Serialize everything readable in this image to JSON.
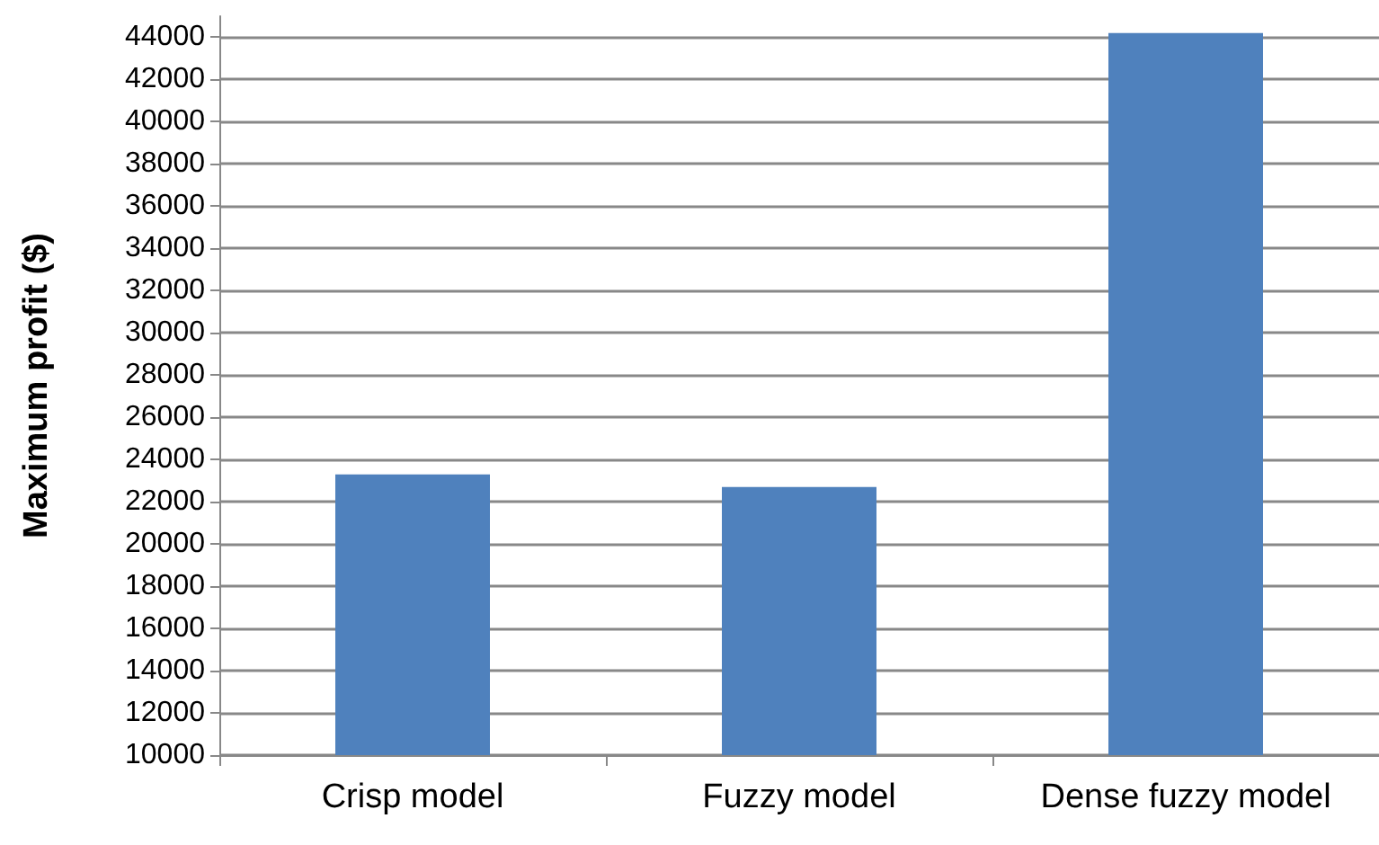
{
  "chart_data": {
    "type": "bar",
    "ylabel": "Maximum profit ($)",
    "categories": [
      "Crisp model",
      "Fuzzy model",
      "Dense fuzzy model"
    ],
    "values": [
      23300,
      22700,
      44200
    ],
    "color": "#4f81bd",
    "ylim": [
      10000,
      45000
    ],
    "yticks": [
      10000,
      12000,
      14000,
      16000,
      18000,
      20000,
      22000,
      24000,
      26000,
      28000,
      30000,
      32000,
      34000,
      36000,
      38000,
      40000,
      42000,
      44000
    ],
    "grid": "y"
  }
}
